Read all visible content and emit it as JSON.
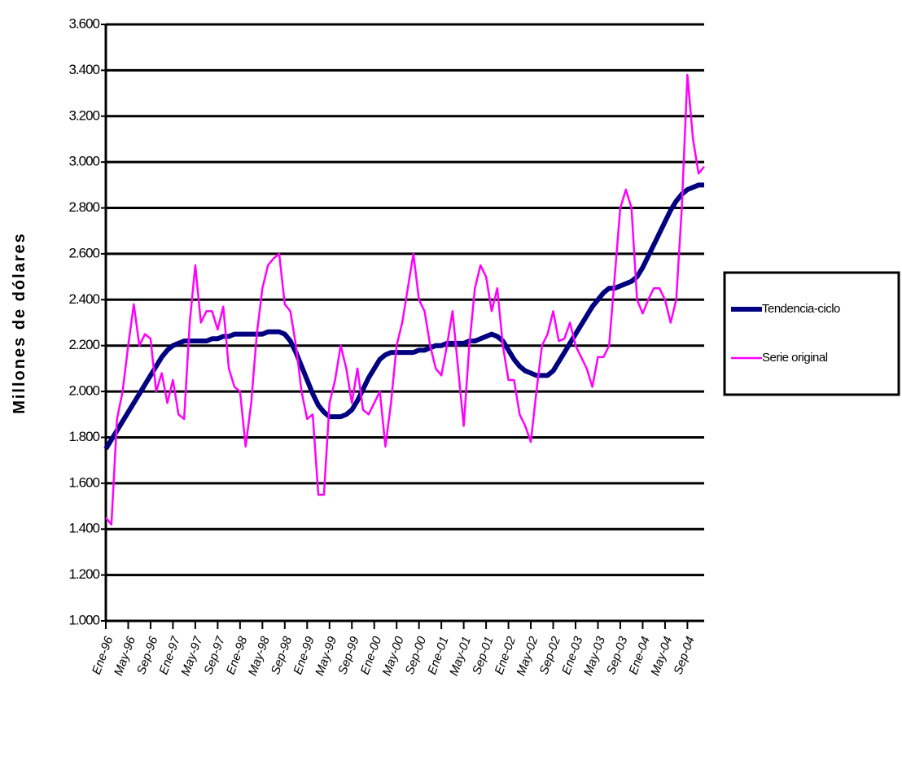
{
  "chart_data": {
    "type": "line",
    "ylabel": "Millones de dólares",
    "categories": [
      "Ene-96",
      null,
      null,
      null,
      "May-96",
      null,
      null,
      null,
      "Sep-96",
      null,
      null,
      null,
      "Ene-97",
      null,
      null,
      null,
      "May-97",
      null,
      null,
      null,
      "Sep-97",
      null,
      null,
      null,
      "Ene-98",
      null,
      null,
      null,
      "May-98",
      null,
      null,
      null,
      "Sep-98",
      null,
      null,
      null,
      "Ene-99",
      null,
      null,
      null,
      "May-99",
      null,
      null,
      null,
      "Sep-99",
      null,
      null,
      null,
      "Ene-00",
      null,
      null,
      null,
      "May-00",
      null,
      null,
      null,
      "Sep-00",
      null,
      null,
      null,
      "Ene-01",
      null,
      null,
      null,
      "May-01",
      null,
      null,
      null,
      "Sep-01",
      null,
      null,
      null,
      "Ene-02",
      null,
      null,
      null,
      "May-02",
      null,
      null,
      null,
      "Sep-02",
      null,
      null,
      null,
      "Ene-03",
      null,
      null,
      null,
      "May-03",
      null,
      null,
      null,
      "Sep-03",
      null,
      null,
      null,
      "Ene-04",
      null,
      null,
      null,
      "May-04",
      null,
      null,
      null,
      "Sep-04",
      null,
      null,
      null
    ],
    "series": [
      {
        "name": "Tendencia-ciclo",
        "color": "#000080",
        "width": 6,
        "values": [
          1750,
          1790,
          1830,
          1870,
          1910,
          1950,
          1990,
          2030,
          2070,
          2110,
          2150,
          2180,
          2200,
          2210,
          2220,
          2220,
          2220,
          2220,
          2220,
          2230,
          2230,
          2240,
          2240,
          2250,
          2250,
          2250,
          2250,
          2250,
          2250,
          2260,
          2260,
          2260,
          2250,
          2220,
          2170,
          2110,
          2050,
          1990,
          1940,
          1910,
          1890,
          1890,
          1890,
          1900,
          1920,
          1960,
          2010,
          2060,
          2100,
          2140,
          2160,
          2170,
          2170,
          2170,
          2170,
          2170,
          2180,
          2180,
          2190,
          2200,
          2200,
          2210,
          2210,
          2210,
          2210,
          2220,
          2220,
          2230,
          2240,
          2250,
          2240,
          2220,
          2180,
          2140,
          2110,
          2090,
          2080,
          2070,
          2070,
          2070,
          2090,
          2130,
          2170,
          2210,
          2250,
          2290,
          2330,
          2370,
          2400,
          2430,
          2450,
          2450,
          2460,
          2470,
          2480,
          2500,
          2540,
          2590,
          2640,
          2690,
          2740,
          2790,
          2830,
          2860,
          2880,
          2890,
          2900,
          2900
        ]
      },
      {
        "name": "Serie original",
        "color": "#ff00ff",
        "width": 2.5,
        "values": [
          1450,
          1420,
          1880,
          2000,
          2200,
          2380,
          2200,
          2250,
          2230,
          2000,
          2080,
          1950,
          2050,
          1900,
          1880,
          2300,
          2550,
          2300,
          2350,
          2350,
          2270,
          2370,
          2100,
          2020,
          2000,
          1760,
          1950,
          2250,
          2450,
          2550,
          2580,
          2600,
          2380,
          2350,
          2200,
          2000,
          1880,
          1900,
          1550,
          1550,
          1950,
          2050,
          2200,
          2100,
          1950,
          2100,
          1920,
          1900,
          1950,
          2000,
          1760,
          1950,
          2200,
          2300,
          2450,
          2600,
          2400,
          2350,
          2200,
          2100,
          2070,
          2200,
          2350,
          2100,
          1850,
          2200,
          2450,
          2550,
          2500,
          2350,
          2450,
          2200,
          2050,
          2050,
          1900,
          1850,
          1780,
          2000,
          2200,
          2250,
          2350,
          2220,
          2230,
          2300,
          2200,
          2150,
          2100,
          2020,
          2150,
          2150,
          2200,
          2500,
          2800,
          2880,
          2800,
          2400,
          2340,
          2400,
          2450,
          2450,
          2400,
          2300,
          2400,
          2800,
          3380,
          3100,
          2950,
          2980
        ]
      }
    ],
    "ylim": [
      1000,
      3600
    ],
    "yticks": [
      {
        "value": 1000,
        "label": "1.000"
      },
      {
        "value": 1200,
        "label": "1.200"
      },
      {
        "value": 1400,
        "label": "1.400"
      },
      {
        "value": 1600,
        "label": "1.600"
      },
      {
        "value": 1800,
        "label": "1.800"
      },
      {
        "value": 2000,
        "label": "2.000"
      },
      {
        "value": 2200,
        "label": "2.200"
      },
      {
        "value": 2400,
        "label": "2.400"
      },
      {
        "value": 2600,
        "label": "2.600"
      },
      {
        "value": 2800,
        "label": "2.800"
      },
      {
        "value": 3000,
        "label": "3.000"
      },
      {
        "value": 3200,
        "label": "3.200"
      },
      {
        "value": 3400,
        "label": "3.400"
      },
      {
        "value": 3600,
        "label": "3.600"
      }
    ],
    "grid": true,
    "legend": "right"
  }
}
